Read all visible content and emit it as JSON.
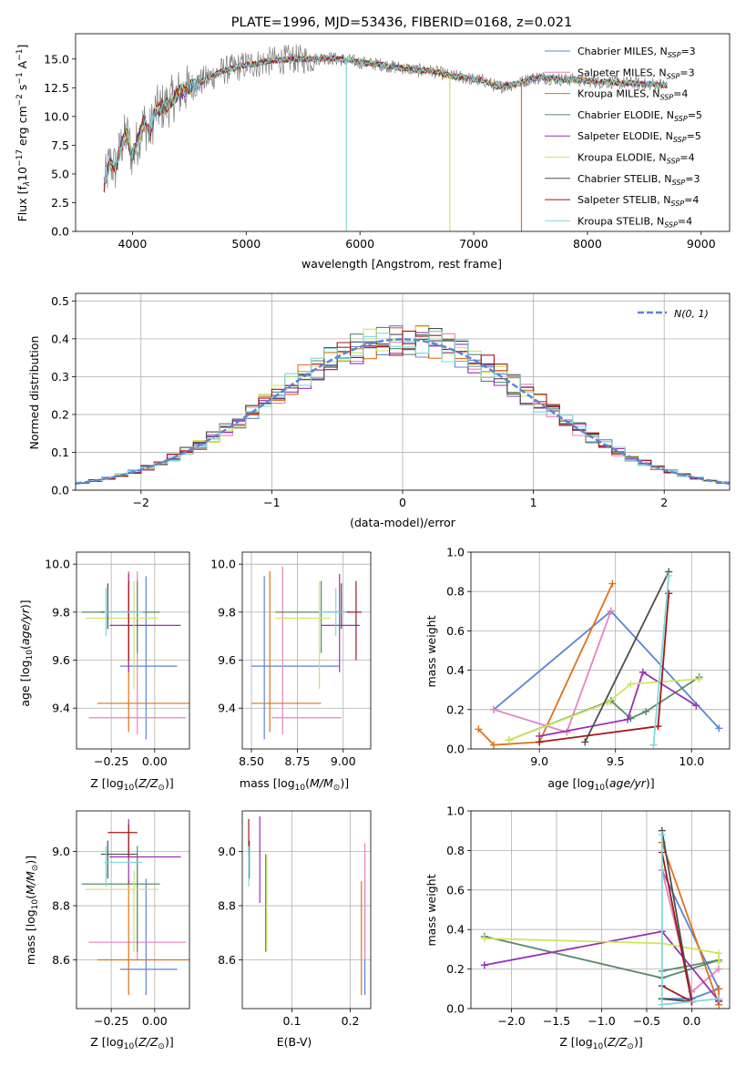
{
  "models": [
    {
      "name": "Chabrier MILES, N_SSP=3",
      "color": "#5b84d6"
    },
    {
      "name": "Salpeter MILES, N_SSP=3",
      "color": "#e483c0"
    },
    {
      "name": "Kroupa MILES, N_SSP=4",
      "color": "#de7217"
    },
    {
      "name": "Chabrier ELODIE, N_SSP=5",
      "color": "#5a8a6a"
    },
    {
      "name": "Salpeter ELODIE, N_SSP=5",
      "color": "#9a2fb5"
    },
    {
      "name": "Kroupa ELODIE, N_SSP=4",
      "color": "#cfe55a"
    },
    {
      "name": "Chabrier STELIB, N_SSP=3",
      "color": "#4d4d4d"
    },
    {
      "name": "Salpeter STELIB, N_SSP=4",
      "color": "#a31818"
    },
    {
      "name": "Kroupa STELIB, N_SSP=4",
      "color": "#7fd9d9"
    }
  ],
  "chart_data": [
    {
      "type": "line",
      "title": "PLATE=1996, MJD=53436, FIBERID=0168, z=0.021",
      "xlabel": "wavelength [Angstrom, rest frame]",
      "ylabel": "Flux [f_λ 10^-17 erg cm^-2 s^-1 A^-1]",
      "xlim": [
        3500,
        9250
      ],
      "ylim": [
        0,
        17.2
      ],
      "xticks": [
        4000,
        5000,
        6000,
        7000,
        8000,
        9000
      ],
      "yticks": [
        0.0,
        2.5,
        5.0,
        7.5,
        10.0,
        12.5,
        15.0
      ],
      "ytick_labels": [
        "0.0",
        "2.5",
        "5.0",
        "7.5",
        "10.0",
        "12.5",
        "15.0"
      ],
      "legend": "upper right",
      "data_color": "#808080",
      "x": [
        3750,
        3800,
        3850,
        3900,
        3950,
        4000,
        4050,
        4100,
        4150,
        4200,
        4300,
        4400,
        4500,
        4600,
        4700,
        4800,
        4900,
        5000,
        5100,
        5200,
        5300,
        5400,
        5500,
        5600,
        5700,
        5800,
        5900,
        6000,
        6100,
        6200,
        6300,
        6400,
        6500,
        6600,
        6700,
        6800,
        6900,
        7000,
        7100,
        7200,
        7300,
        7400,
        7500,
        7600,
        7700,
        7800,
        7900,
        8000,
        8100,
        8200,
        8300,
        8400,
        8500,
        8600,
        8700
      ],
      "model_y": [
        4.0,
        6.0,
        5.5,
        7.5,
        8.5,
        6.5,
        8.0,
        9.5,
        8.5,
        10.5,
        11.0,
        12.0,
        12.5,
        13.0,
        13.5,
        14.0,
        14.2,
        14.5,
        14.6,
        14.8,
        14.9,
        15.0,
        15.0,
        15.0,
        15.1,
        15.0,
        14.9,
        14.7,
        14.6,
        14.5,
        14.3,
        14.2,
        14.0,
        14.0,
        13.8,
        13.5,
        13.4,
        13.2,
        13.1,
        12.6,
        12.7,
        12.9,
        13.3,
        13.4,
        13.3,
        13.2,
        13.2,
        13.1,
        13.0,
        13.0,
        12.9,
        12.9,
        12.8,
        12.8,
        12.7
      ],
      "drops": [
        {
          "x": 5880,
          "color": "#7fd9d9"
        },
        {
          "x": 6790,
          "color": "#cfe55a"
        },
        {
          "x": 7420,
          "color": "#de7217"
        }
      ]
    },
    {
      "type": "bar",
      "xlabel": "(data-model)/error",
      "ylabel": "Normed distribution",
      "xlim": [
        -2.5,
        2.5
      ],
      "ylim": [
        0,
        0.52
      ],
      "xticks": [
        -2,
        -1,
        0,
        1,
        2
      ],
      "xtick_labels": [
        "−2",
        "−1",
        "0",
        "1",
        "2"
      ],
      "yticks": [
        0.0,
        0.1,
        0.2,
        0.3,
        0.4,
        0.5
      ],
      "ytick_labels": [
        "0.0",
        "0.1",
        "0.2",
        "0.3",
        "0.4",
        "0.5"
      ],
      "bin_width": 0.1,
      "gauss_label": "N(0, 1)",
      "gauss_color": "#5b84d6"
    },
    {
      "type": "scatter",
      "xlabel": "Z [log10(Z/Z⊙)]",
      "ylabel": "age [log10(age/yr)]",
      "xlim": [
        -0.45,
        0.2
      ],
      "ylim": [
        9.23,
        10.05
      ],
      "xticks": [
        -0.25,
        0.0
      ],
      "xtick_labels": [
        "−0.25",
        "0.00"
      ],
      "yticks": [
        9.4,
        9.6,
        9.8,
        10.0
      ],
      "ytick_labels": [
        "9.4",
        "9.6",
        "9.8",
        "10.0"
      ],
      "points": [
        {
          "m": 0,
          "x": -0.05,
          "y": 9.575,
          "xe": [
            -0.2,
            0.13
          ],
          "ye": [
            9.27,
            9.95
          ]
        },
        {
          "m": 1,
          "x": -0.1,
          "y": 9.36,
          "xe": [
            -0.38,
            0.18
          ],
          "ye": [
            9.29,
            9.97
          ]
        },
        {
          "m": 2,
          "x": -0.15,
          "y": 9.42,
          "xe": [
            -0.33,
            0.2
          ],
          "ye": [
            9.3,
            9.97
          ]
        },
        {
          "m": 3,
          "x": -0.1,
          "y": 9.8,
          "xe": [
            -0.42,
            0.03
          ],
          "ye": [
            9.63,
            9.93
          ]
        },
        {
          "m": 4,
          "x": -0.15,
          "y": 9.745,
          "xe": [
            -0.26,
            0.15
          ],
          "ye": [
            9.55,
            9.96
          ]
        },
        {
          "m": 5,
          "x": -0.12,
          "y": 9.775,
          "xe": [
            -0.4,
            0.02
          ],
          "ye": [
            9.48,
            9.93
          ]
        },
        {
          "m": 6,
          "x": -0.27,
          "y": 9.8,
          "xe": [
            -0.31,
            -0.1
          ],
          "ye": [
            9.73,
            9.92
          ]
        },
        {
          "m": 7,
          "x": -0.15,
          "y": 9.8,
          "xe": [
            -0.27,
            -0.1
          ],
          "ye": [
            9.6,
            9.93
          ]
        },
        {
          "m": 8,
          "x": -0.28,
          "y": 9.8,
          "xe": [
            -0.29,
            -0.07
          ],
          "ye": [
            9.7,
            9.9
          ]
        }
      ]
    },
    {
      "type": "scatter",
      "xlabel": "mass [log10(M/M⊙)]",
      "ylabel": "",
      "xlim": [
        8.45,
        9.15
      ],
      "ylim": [
        9.23,
        10.05
      ],
      "xticks": [
        8.5,
        8.75,
        9.0
      ],
      "xtick_labels": [
        "8.50",
        "8.75",
        "9.00"
      ],
      "yticks": [
        9.4,
        9.6,
        9.8,
        10.0
      ],
      "ytick_labels": [
        "9.4",
        "9.6",
        "9.8",
        "10.0"
      ],
      "points": [
        {
          "m": 0,
          "x": 8.57,
          "y": 9.575,
          "xe": [
            8.5,
            8.98
          ],
          "ye": [
            9.27,
            9.95
          ]
        },
        {
          "m": 1,
          "x": 8.67,
          "y": 9.36,
          "xe": [
            8.61,
            8.99
          ],
          "ye": [
            9.29,
            9.99
          ]
        },
        {
          "m": 2,
          "x": 8.6,
          "y": 9.42,
          "xe": [
            8.5,
            8.88
          ],
          "ye": [
            9.3,
            9.97
          ]
        },
        {
          "m": 3,
          "x": 8.88,
          "y": 9.8,
          "xe": [
            8.63,
            9.02
          ],
          "ye": [
            9.63,
            9.93
          ]
        },
        {
          "m": 4,
          "x": 8.98,
          "y": 9.745,
          "xe": [
            8.88,
            9.09
          ],
          "ye": [
            9.55,
            9.96
          ]
        },
        {
          "m": 5,
          "x": 8.87,
          "y": 9.775,
          "xe": [
            8.63,
            8.93
          ],
          "ye": [
            9.48,
            9.93
          ]
        },
        {
          "m": 6,
          "x": 8.99,
          "y": 9.8,
          "xe": [
            8.9,
            9.04
          ],
          "ye": [
            9.73,
            9.92
          ]
        },
        {
          "m": 7,
          "x": 9.07,
          "y": 9.8,
          "xe": [
            8.98,
            9.1
          ],
          "ye": [
            9.6,
            9.93
          ]
        },
        {
          "m": 8,
          "x": 8.96,
          "y": 9.8,
          "xe": [
            8.87,
            9.02
          ],
          "ye": [
            9.7,
            9.9
          ]
        }
      ]
    },
    {
      "type": "line",
      "xlabel": "age [log10(age/yr)]",
      "ylabel": "mass weight",
      "xlim": [
        8.55,
        10.25
      ],
      "ylim": [
        0,
        1.0
      ],
      "xticks": [
        9.0,
        9.5,
        10.0
      ],
      "xtick_labels": [
        "9.0",
        "9.5",
        "10.0"
      ],
      "yticks": [
        0.0,
        0.2,
        0.4,
        0.6,
        0.8,
        1.0
      ],
      "ytick_labels": [
        "0.0",
        "0.2",
        "0.4",
        "0.6",
        "0.8",
        "1.0"
      ],
      "series": [
        {
          "m": 0,
          "x": [
            10.18,
            9.47,
            8.7
          ],
          "y": [
            0.105,
            0.7,
            0.2
          ]
        },
        {
          "m": 1,
          "x": [
            8.7,
            9.18,
            9.47
          ],
          "y": [
            0.2,
            0.085,
            0.7
          ]
        },
        {
          "m": 2,
          "x": [
            8.6,
            8.7,
            9.0,
            9.48
          ],
          "y": [
            0.1,
            0.02,
            0.035,
            0.84
          ]
        },
        {
          "m": 3,
          "x": [
            8.8,
            9.47,
            9.6,
            9.7,
            10.05
          ],
          "y": [
            0.045,
            0.245,
            0.155,
            0.19,
            0.365
          ]
        },
        {
          "m": 4,
          "x": [
            9.0,
            9.58,
            9.68,
            10.03
          ],
          "y": [
            0.065,
            0.15,
            0.39,
            0.22
          ]
        },
        {
          "m": 5,
          "x": [
            8.8,
            9.45,
            9.6,
            10.05
          ],
          "y": [
            0.045,
            0.235,
            0.33,
            0.355
          ]
        },
        {
          "m": 6,
          "x": [
            9.3,
            9.85
          ],
          "y": [
            0.035,
            0.9
          ]
        },
        {
          "m": 7,
          "x": [
            9.0,
            9.78,
            9.85
          ],
          "y": [
            0.035,
            0.115,
            0.79
          ]
        },
        {
          "m": 8,
          "x": [
            9.75,
            9.85
          ],
          "y": [
            0.02,
            0.88
          ]
        }
      ]
    },
    {
      "type": "scatter",
      "xlabel": "Z [log10(Z/Z⊙)]",
      "ylabel": "mass [log10(M/M⊙)]",
      "xlim": [
        -0.45,
        0.2
      ],
      "ylim": [
        8.42,
        9.15
      ],
      "xticks": [
        -0.25,
        0.0
      ],
      "xtick_labels": [
        "−0.25",
        "0.00"
      ],
      "yticks": [
        8.6,
        8.8,
        9.0
      ],
      "ytick_labels": [
        "8.6",
        "8.8",
        "9.0"
      ],
      "points": [
        {
          "m": 0,
          "x": -0.05,
          "y": 8.565,
          "xe": [
            -0.2,
            0.13
          ],
          "ye": [
            8.47,
            8.9
          ]
        },
        {
          "m": 1,
          "x": -0.1,
          "y": 8.665,
          "xe": [
            -0.38,
            0.18
          ],
          "ye": [
            8.6,
            8.99
          ]
        },
        {
          "m": 2,
          "x": -0.15,
          "y": 8.6,
          "xe": [
            -0.33,
            0.2
          ],
          "ye": [
            8.47,
            8.9
          ]
        },
        {
          "m": 3,
          "x": -0.1,
          "y": 8.88,
          "xe": [
            -0.42,
            0.03
          ],
          "ye": [
            8.63,
            9.02
          ]
        },
        {
          "m": 4,
          "x": -0.15,
          "y": 8.98,
          "xe": [
            -0.26,
            0.15
          ],
          "ye": [
            8.88,
            9.12
          ]
        },
        {
          "m": 5,
          "x": -0.12,
          "y": 8.86,
          "xe": [
            -0.4,
            0.02
          ],
          "ye": [
            8.63,
            8.93
          ]
        },
        {
          "m": 6,
          "x": -0.27,
          "y": 8.99,
          "xe": [
            -0.31,
            -0.1
          ],
          "ye": [
            8.9,
            9.04
          ]
        },
        {
          "m": 7,
          "x": -0.15,
          "y": 9.07,
          "xe": [
            -0.27,
            -0.1
          ],
          "ye": [
            8.98,
            9.1
          ]
        },
        {
          "m": 8,
          "x": -0.28,
          "y": 8.96,
          "xe": [
            -0.29,
            -0.07
          ],
          "ye": [
            8.87,
            9.02
          ]
        }
      ]
    },
    {
      "type": "scatter",
      "xlabel": "E(B-V)",
      "ylabel": "",
      "xlim": [
        0.015,
        0.235
      ],
      "ylim": [
        8.42,
        9.15
      ],
      "xticks": [
        0.1,
        0.2
      ],
      "xtick_labels": [
        "0.1",
        "0.2"
      ],
      "yticks": [
        8.6,
        8.8,
        9.0
      ],
      "ytick_labels": [
        "8.6",
        "8.8",
        "9.0"
      ],
      "points": [
        {
          "m": 0,
          "x": 0.225,
          "y": 8.565,
          "ye": [
            8.47,
            8.9
          ]
        },
        {
          "m": 1,
          "x": 0.225,
          "y": 8.665,
          "ye": [
            8.6,
            9.03
          ]
        },
        {
          "m": 2,
          "x": 0.219,
          "y": 8.6,
          "ye": [
            8.47,
            8.89
          ]
        },
        {
          "m": 3,
          "x": 0.055,
          "y": 8.88,
          "ye": [
            8.63,
            8.99
          ]
        },
        {
          "m": 4,
          "x": 0.045,
          "y": 8.98,
          "ye": [
            8.81,
            9.13
          ]
        },
        {
          "m": 5,
          "x": 0.057,
          "y": 8.86,
          "ye": [
            8.63,
            8.99
          ]
        },
        {
          "m": 6,
          "x": 0.027,
          "y": 8.99,
          "ye": [
            8.9,
            9.04
          ]
        },
        {
          "m": 7,
          "x": 0.026,
          "y": 9.07,
          "ye": [
            8.98,
            9.12
          ]
        },
        {
          "m": 8,
          "x": 0.026,
          "y": 8.96,
          "ye": [
            8.87,
            9.02
          ]
        }
      ]
    },
    {
      "type": "line",
      "xlabel": "Z [log10(Z/Z⊙)]",
      "ylabel": "mass weight",
      "xlim": [
        -2.45,
        0.42
      ],
      "ylim": [
        0,
        1.0
      ],
      "xticks": [
        -2.0,
        -1.5,
        -1.0,
        -0.5,
        0.0
      ],
      "xtick_labels": [
        "−2.0",
        "−1.5",
        "−1.0",
        "−0.5",
        "0.0"
      ],
      "yticks": [
        0.0,
        0.2,
        0.4,
        0.6,
        0.8,
        1.0
      ],
      "ytick_labels": [
        "0.0",
        "0.2",
        "0.4",
        "0.6",
        "0.8",
        "1.0"
      ],
      "series": [
        {
          "m": 0,
          "x": [
            -0.33,
            0.3,
            0.0,
            -0.33
          ],
          "y": [
            0.7,
            0.1,
            0.05,
            0.05
          ]
        },
        {
          "m": 1,
          "x": [
            -0.33,
            0.0,
            0.3
          ],
          "y": [
            0.7,
            0.085,
            0.2
          ]
        },
        {
          "m": 2,
          "x": [
            -0.33,
            0.3,
            0.3,
            0.3
          ],
          "y": [
            0.84,
            0.02,
            0.1,
            0.035
          ]
        },
        {
          "m": 3,
          "x": [
            -2.3,
            -0.33,
            0.3,
            -0.33
          ],
          "y": [
            0.365,
            0.155,
            0.245,
            0.19
          ]
        },
        {
          "m": 4,
          "x": [
            -2.3,
            -0.33,
            0.3
          ],
          "y": [
            0.22,
            0.39,
            0.04
          ]
        },
        {
          "m": 5,
          "x": [
            -2.3,
            -0.33,
            0.3,
            0.3
          ],
          "y": [
            0.355,
            0.33,
            0.28,
            0.235
          ]
        },
        {
          "m": 6,
          "x": [
            -0.33,
            0.0,
            -0.33
          ],
          "y": [
            0.9,
            0.035,
            0.05
          ]
        },
        {
          "m": 7,
          "x": [
            -0.33,
            0.0,
            -0.33
          ],
          "y": [
            0.115,
            0.035,
            0.79
          ]
        },
        {
          "m": 8,
          "x": [
            -0.33,
            -0.33,
            0.3
          ],
          "y": [
            0.88,
            0.02,
            0.05
          ]
        }
      ]
    }
  ]
}
